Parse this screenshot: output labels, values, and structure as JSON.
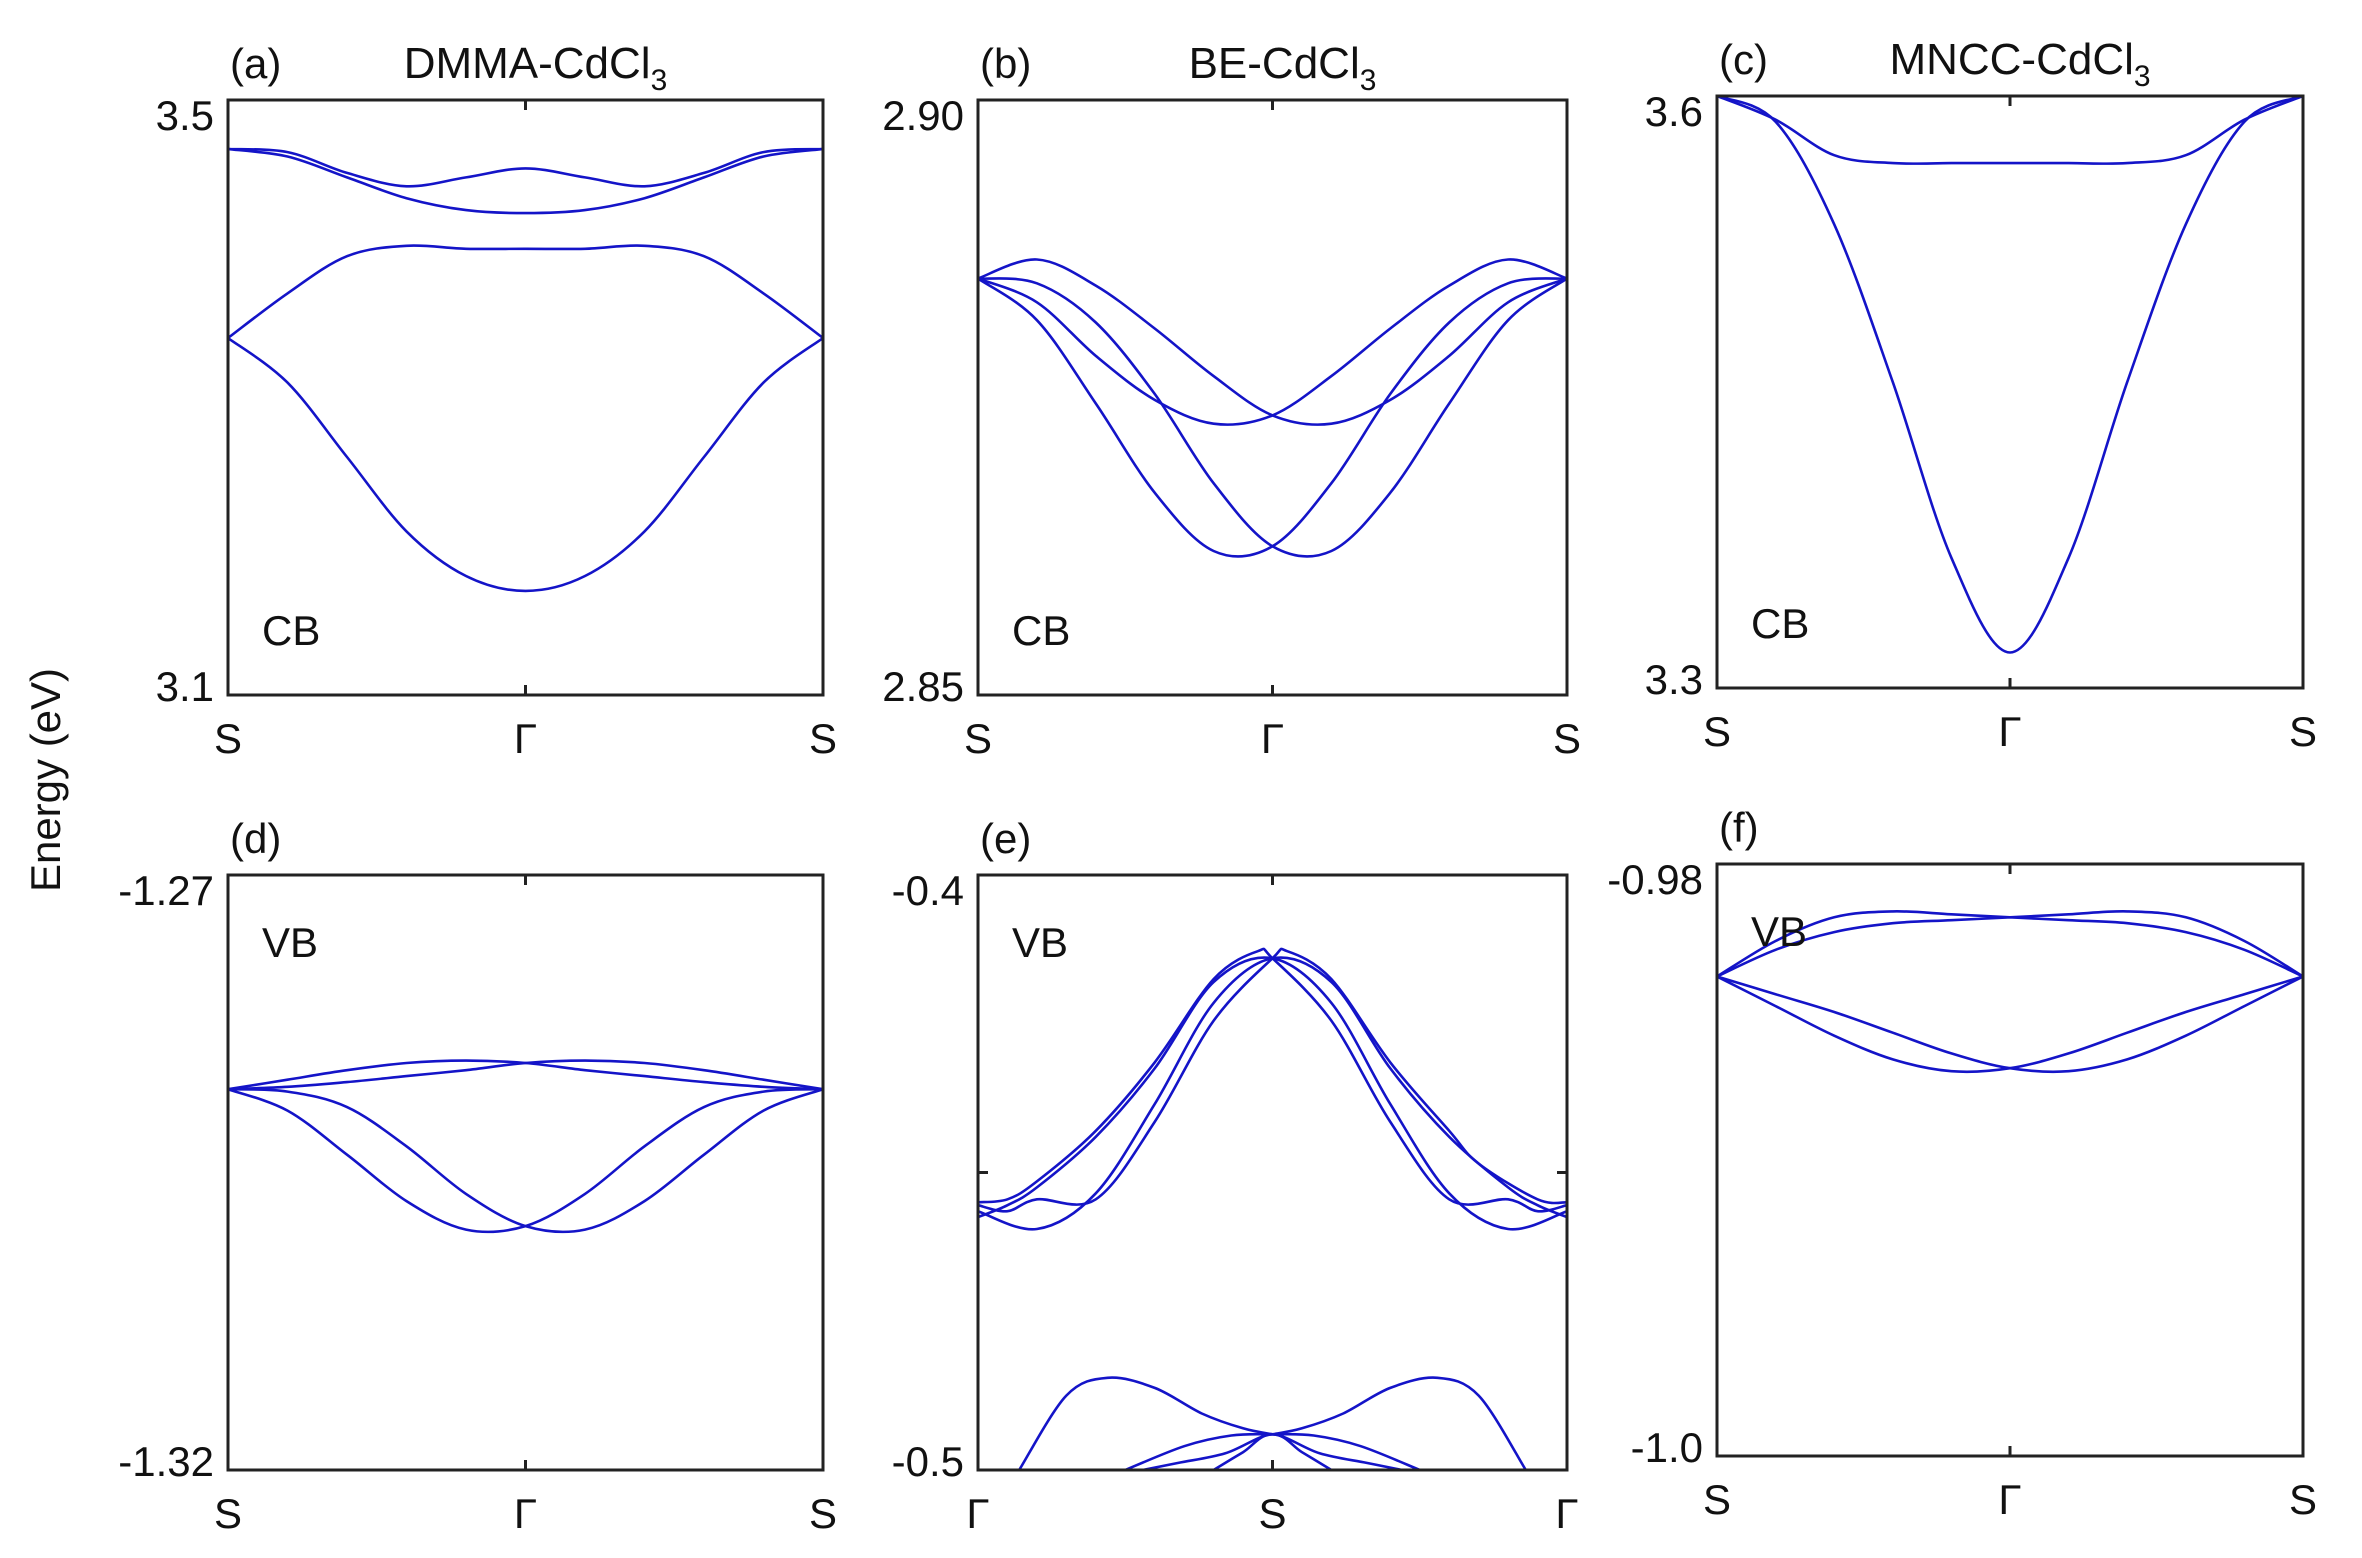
{
  "figure": {
    "ylabel": "Energy (eV)",
    "line_color": "#1414c8"
  },
  "chart_data": [
    {
      "id": "a",
      "type": "line",
      "panel_label": "(a)",
      "title_main": "DMMA-CdCl",
      "title_sub": "3",
      "band_label": "CB",
      "xticks": [
        "S",
        "Γ",
        "S"
      ],
      "ylim": [
        3.1,
        3.5
      ],
      "yticks": [
        "3.1",
        "3.5"
      ],
      "xlim": [
        0,
        1
      ],
      "series": [
        {
          "name": "band1",
          "x": [
            0,
            0.1,
            0.2,
            0.3,
            0.4,
            0.5,
            0.6,
            0.7,
            0.8,
            0.9,
            1
          ],
          "values": [
            3.34,
            3.31,
            3.26,
            3.21,
            3.18,
            3.17,
            3.18,
            3.21,
            3.26,
            3.31,
            3.34
          ]
        },
        {
          "name": "band2",
          "x": [
            0,
            0.1,
            0.2,
            0.3,
            0.4,
            0.5,
            0.6,
            0.7,
            0.8,
            0.9,
            1
          ],
          "values": [
            3.34,
            3.37,
            3.395,
            3.402,
            3.4,
            3.4,
            3.4,
            3.402,
            3.395,
            3.37,
            3.34
          ]
        },
        {
          "name": "band3",
          "x": [
            0,
            0.1,
            0.2,
            0.3,
            0.4,
            0.5,
            0.6,
            0.7,
            0.8,
            0.9,
            1
          ],
          "values": [
            3.467,
            3.462,
            3.448,
            3.434,
            3.426,
            3.424,
            3.426,
            3.434,
            3.448,
            3.462,
            3.467
          ]
        },
        {
          "name": "band4",
          "x": [
            0,
            0.1,
            0.2,
            0.3,
            0.4,
            0.5,
            0.6,
            0.7,
            0.8,
            0.9,
            1
          ],
          "values": [
            3.467,
            3.465,
            3.451,
            3.442,
            3.448,
            3.454,
            3.448,
            3.442,
            3.451,
            3.465,
            3.467
          ]
        }
      ]
    },
    {
      "id": "b",
      "type": "line",
      "panel_label": "(b)",
      "title_main": "BE-CdCl",
      "title_sub": "3",
      "band_label": "CB",
      "xticks": [
        "S",
        "Γ",
        "S"
      ],
      "ylim": [
        2.85,
        2.9
      ],
      "yticks": [
        "2.85",
        "2.90"
      ],
      "xlim": [
        0,
        1
      ],
      "series": [
        {
          "name": "band1",
          "x": [
            0,
            0.1,
            0.2,
            0.3,
            0.4,
            0.5,
            0.6,
            0.7,
            0.8,
            0.9,
            1
          ],
          "values": [
            2.885,
            2.883,
            2.8785,
            2.8748,
            2.8728,
            2.8735,
            2.8768,
            2.8808,
            2.8844,
            2.8866,
            2.885
          ]
        },
        {
          "name": "band2",
          "x": [
            0,
            0.1,
            0.2,
            0.3,
            0.4,
            0.5,
            0.6,
            0.7,
            0.8,
            0.9,
            1
          ],
          "values": [
            2.885,
            2.8866,
            2.8844,
            2.8808,
            2.8768,
            2.8735,
            2.8728,
            2.8748,
            2.8785,
            2.883,
            2.885
          ]
        },
        {
          "name": "band3",
          "x": [
            0,
            0.1,
            0.2,
            0.3,
            0.4,
            0.5,
            0.6,
            0.7,
            0.8,
            0.9,
            1
          ],
          "values": [
            2.885,
            2.8815,
            2.8745,
            2.867,
            2.8621,
            2.8625,
            2.8678,
            2.8753,
            2.8813,
            2.8846,
            2.885
          ]
        },
        {
          "name": "band4",
          "x": [
            0,
            0.1,
            0.2,
            0.3,
            0.4,
            0.5,
            0.6,
            0.7,
            0.8,
            0.9,
            1
          ],
          "values": [
            2.885,
            2.8846,
            2.8813,
            2.8753,
            2.8678,
            2.8625,
            2.8621,
            2.867,
            2.8745,
            2.8815,
            2.885
          ]
        }
      ]
    },
    {
      "id": "c",
      "type": "line",
      "panel_label": "(c)",
      "title_main": "MNCC-CdCl",
      "title_sub": "3",
      "band_label": "CB",
      "xticks": [
        "S",
        "Γ",
        "S"
      ],
      "ylim": [
        3.3,
        3.6
      ],
      "yticks": [
        "3.3",
        "3.6"
      ],
      "xlim": [
        0,
        1
      ],
      "series": [
        {
          "name": "band1",
          "x": [
            0,
            0.1,
            0.2,
            0.3,
            0.4,
            0.5,
            0.6,
            0.7,
            0.8,
            0.9,
            1
          ],
          "values": [
            3.6,
            3.587,
            3.535,
            3.455,
            3.366,
            3.318,
            3.366,
            3.455,
            3.535,
            3.587,
            3.6
          ]
        },
        {
          "name": "band2",
          "x": [
            0,
            0.1,
            0.2,
            0.3,
            0.4,
            0.5,
            0.6,
            0.7,
            0.8,
            0.9,
            1
          ],
          "values": [
            3.6,
            3.588,
            3.57,
            3.566,
            3.566,
            3.566,
            3.566,
            3.566,
            3.57,
            3.588,
            3.6
          ]
        }
      ]
    },
    {
      "id": "d",
      "type": "line",
      "panel_label": "(d)",
      "title_main": "",
      "title_sub": "",
      "band_label": "VB",
      "xticks": [
        "S",
        "Γ",
        "S"
      ],
      "ylim": [
        -1.32,
        -1.27
      ],
      "yticks": [
        "-1.32",
        "-1.27"
      ],
      "xlim": [
        0,
        1
      ],
      "series": [
        {
          "name": "band1",
          "x": [
            0,
            0.1,
            0.2,
            0.3,
            0.4,
            0.5,
            0.6,
            0.7,
            0.8,
            0.9,
            1
          ],
          "values": [
            -1.288,
            -1.2898,
            -1.2935,
            -1.2974,
            -1.2998,
            -1.2995,
            -1.2968,
            -1.2928,
            -1.2895,
            -1.2882,
            -1.288
          ]
        },
        {
          "name": "band2",
          "x": [
            0,
            0.1,
            0.2,
            0.3,
            0.4,
            0.5,
            0.6,
            0.7,
            0.8,
            0.9,
            1
          ],
          "values": [
            -1.288,
            -1.2882,
            -1.2895,
            -1.2928,
            -1.2968,
            -1.2995,
            -1.2998,
            -1.2974,
            -1.2935,
            -1.2898,
            -1.288
          ]
        },
        {
          "name": "band3",
          "x": [
            0,
            0.1,
            0.2,
            0.3,
            0.4,
            0.5,
            0.6,
            0.7,
            0.8,
            0.9,
            1
          ],
          "values": [
            -1.288,
            -1.2872,
            -1.2864,
            -1.2858,
            -1.2856,
            -1.2858,
            -1.2864,
            -1.2869,
            -1.2874,
            -1.2878,
            -1.288
          ]
        },
        {
          "name": "band4",
          "x": [
            0,
            0.1,
            0.2,
            0.3,
            0.4,
            0.5,
            0.6,
            0.7,
            0.8,
            0.9,
            1
          ],
          "values": [
            -1.288,
            -1.2878,
            -1.2874,
            -1.2869,
            -1.2864,
            -1.2858,
            -1.2856,
            -1.2858,
            -1.2864,
            -1.2872,
            -1.288
          ]
        }
      ]
    },
    {
      "id": "e",
      "type": "line",
      "panel_label": "(e)",
      "title_main": "",
      "title_sub": "",
      "band_label": "VB",
      "xticks": [
        "Γ",
        "S",
        "Γ"
      ],
      "ylim": [
        -0.5,
        -0.4
      ],
      "yticks": [
        "-0.5",
        "-0.4"
      ],
      "xlim": [
        0,
        1
      ],
      "series": [
        {
          "name": "band1",
          "x": [
            0,
            0.05,
            0.1,
            0.2,
            0.3,
            0.4,
            0.475,
            0.5,
            0.6,
            0.7,
            0.8,
            0.9,
            0.95,
            1
          ],
          "values": [
            -0.455,
            -0.4545,
            -0.4515,
            -0.443,
            -0.4315,
            -0.4175,
            -0.4128,
            -0.414,
            -0.4245,
            -0.4415,
            -0.4545,
            -0.4545,
            -0.4565,
            -0.4555
          ]
        },
        {
          "name": "band2",
          "x": [
            0,
            0.05,
            0.1,
            0.2,
            0.3,
            0.4,
            0.5,
            0.525,
            0.6,
            0.7,
            0.8,
            0.85,
            0.95,
            1
          ],
          "values": [
            -0.4555,
            -0.4565,
            -0.4545,
            -0.4545,
            -0.4415,
            -0.4245,
            -0.414,
            -0.4128,
            -0.4175,
            -0.4315,
            -0.443,
            -0.4485,
            -0.4545,
            -0.455
          ]
        },
        {
          "name": "band3",
          "x": [
            0,
            0.05,
            0.1,
            0.2,
            0.3,
            0.4,
            0.5,
            0.6,
            0.7,
            0.8,
            0.9,
            1
          ],
          "values": [
            -0.4575,
            -0.4555,
            -0.4525,
            -0.444,
            -0.4325,
            -0.418,
            -0.414,
            -0.4215,
            -0.4385,
            -0.4535,
            -0.4595,
            -0.4565
          ]
        },
        {
          "name": "band4",
          "x": [
            0,
            0.1,
            0.2,
            0.3,
            0.4,
            0.5,
            0.6,
            0.7,
            0.8,
            0.9,
            0.95,
            1
          ],
          "values": [
            -0.4565,
            -0.4595,
            -0.4535,
            -0.4385,
            -0.4215,
            -0.414,
            -0.418,
            -0.4325,
            -0.444,
            -0.4525,
            -0.4555,
            -0.4575
          ]
        },
        {
          "name": "band5",
          "x": [
            0.07,
            0.15,
            0.22,
            0.3,
            0.38,
            0.45,
            0.5
          ],
          "values": [
            -0.5,
            -0.4875,
            -0.4845,
            -0.4862,
            -0.4905,
            -0.493,
            -0.494
          ]
        },
        {
          "name": "band6",
          "x": [
            0.5,
            0.55,
            0.62,
            0.7,
            0.78,
            0.85,
            0.93
          ],
          "values": [
            -0.494,
            -0.493,
            -0.4905,
            -0.4862,
            -0.4845,
            -0.4875,
            -0.5
          ]
        },
        {
          "name": "band7",
          "x": [
            0.25,
            0.35,
            0.43,
            0.5,
            0.57,
            0.65,
            0.75
          ],
          "values": [
            -0.5,
            -0.496,
            -0.4942,
            -0.494,
            -0.4942,
            -0.496,
            -0.5
          ]
        },
        {
          "name": "band8",
          "x": [
            0.4,
            0.45,
            0.5,
            0.58,
            0.66,
            0.72
          ],
          "values": [
            -0.5,
            -0.497,
            -0.494,
            -0.4972,
            -0.4988,
            -0.5
          ]
        },
        {
          "name": "band9",
          "x": [
            0.28,
            0.34,
            0.42,
            0.5,
            0.55,
            0.6
          ],
          "values": [
            -0.5,
            -0.4988,
            -0.4972,
            -0.494,
            -0.497,
            -0.5
          ]
        }
      ]
    },
    {
      "id": "f",
      "type": "line",
      "panel_label": "(f)",
      "title_main": "",
      "title_sub": "",
      "band_label": "VB",
      "xticks": [
        "S",
        "Γ",
        "S"
      ],
      "ylim": [
        -1.0,
        -0.98
      ],
      "yticks": [
        "-1.0",
        "-0.98"
      ],
      "xlim": [
        0,
        1
      ],
      "series": [
        {
          "name": "band1",
          "x": [
            0,
            0.1,
            0.2,
            0.3,
            0.4,
            0.5,
            0.6,
            0.7,
            0.8,
            0.9,
            1
          ],
          "values": [
            -0.9838,
            -0.9829,
            -0.9823,
            -0.982,
            -0.9819,
            -0.9818,
            -0.9817,
            -0.9816,
            -0.9818,
            -0.9826,
            -0.9838
          ]
        },
        {
          "name": "band2",
          "x": [
            0,
            0.1,
            0.2,
            0.3,
            0.4,
            0.5,
            0.6,
            0.7,
            0.8,
            0.9,
            1
          ],
          "values": [
            -0.9838,
            -0.9826,
            -0.9818,
            -0.9816,
            -0.9817,
            -0.9818,
            -0.9819,
            -0.982,
            -0.9823,
            -0.9829,
            -0.9838
          ]
        },
        {
          "name": "band3",
          "x": [
            0,
            0.1,
            0.2,
            0.3,
            0.4,
            0.5,
            0.6,
            0.7,
            0.8,
            0.9,
            1
          ],
          "values": [
            -0.9838,
            -0.9848,
            -0.9858,
            -0.9866,
            -0.987,
            -0.9869,
            -0.9864,
            -0.9857,
            -0.985,
            -0.9844,
            -0.9838
          ]
        },
        {
          "name": "band4",
          "x": [
            0,
            0.1,
            0.2,
            0.3,
            0.4,
            0.5,
            0.6,
            0.7,
            0.8,
            0.9,
            1
          ],
          "values": [
            -0.9838,
            -0.9844,
            -0.985,
            -0.9857,
            -0.9864,
            -0.9869,
            -0.987,
            -0.9866,
            -0.9858,
            -0.9848,
            -0.9838
          ]
        }
      ]
    }
  ]
}
